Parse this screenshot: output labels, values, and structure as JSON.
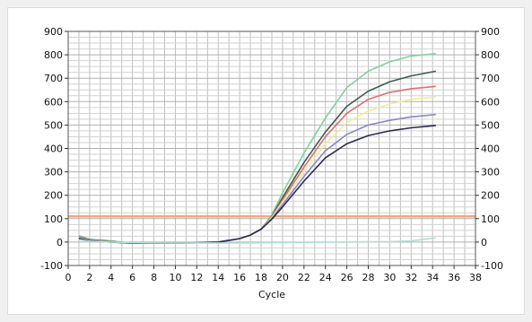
{
  "chart_data": {
    "type": "line",
    "title": "",
    "xlabel": "Cycle",
    "ylabel": "",
    "xlim": [
      0,
      38
    ],
    "ylim": [
      -100,
      900
    ],
    "xticks": [
      0,
      2,
      4,
      6,
      8,
      10,
      12,
      14,
      16,
      18,
      20,
      22,
      24,
      26,
      28,
      30,
      32,
      34,
      36,
      38
    ],
    "xtick_labels": [
      "0",
      "2",
      "4",
      "6",
      "8",
      "10",
      "12",
      "14",
      "16",
      "18",
      "20",
      "22",
      "24",
      "26",
      "28",
      "30",
      "32",
      "34",
      "36",
      "38"
    ],
    "yticks": [
      -100,
      0,
      100,
      200,
      300,
      400,
      500,
      600,
      700,
      800,
      900
    ],
    "ytick_labels": [
      "-100",
      "0",
      "100",
      "200",
      "300",
      "400",
      "500",
      "600",
      "700",
      "800",
      "900"
    ],
    "grid": true,
    "threshold": {
      "y": 110,
      "color": "#f5a57e"
    },
    "series": [
      {
        "color": "#7fd39a",
        "x": [
          1,
          2,
          4,
          6,
          8,
          10,
          12,
          14,
          16,
          17,
          18,
          19,
          20,
          22,
          24,
          26,
          28,
          30,
          32,
          34.3
        ],
        "values": [
          28,
          12,
          5,
          -5,
          -5,
          -4,
          -3,
          0,
          15,
          30,
          55,
          115,
          210,
          380,
          530,
          660,
          730,
          770,
          795,
          805
        ]
      },
      {
        "color": "#3a5d4e",
        "x": [
          1,
          2,
          4,
          6,
          8,
          10,
          12,
          14,
          16,
          17,
          18,
          19,
          20,
          22,
          24,
          26,
          28,
          30,
          32,
          34.3
        ],
        "values": [
          22,
          10,
          3,
          -5,
          -5,
          -4,
          -3,
          0,
          15,
          30,
          55,
          110,
          190,
          340,
          470,
          580,
          645,
          685,
          710,
          730
        ]
      },
      {
        "color": "#e07070",
        "x": [
          1,
          2,
          4,
          6,
          8,
          10,
          12,
          14,
          16,
          17,
          18,
          19,
          20,
          22,
          24,
          26,
          28,
          30,
          32,
          34.3
        ],
        "values": [
          20,
          8,
          2,
          -5,
          -5,
          -4,
          -3,
          0,
          15,
          30,
          55,
          108,
          180,
          320,
          450,
          550,
          610,
          640,
          655,
          665
        ]
      },
      {
        "color": "#eeee99",
        "x": [
          1,
          2,
          4,
          6,
          8,
          10,
          12,
          14,
          16,
          17,
          18,
          19,
          20,
          22,
          24,
          26,
          28,
          30,
          32,
          34.3
        ],
        "values": [
          18,
          7,
          1,
          -5,
          -5,
          -4,
          -3,
          0,
          15,
          30,
          55,
          105,
          170,
          300,
          420,
          510,
          560,
          590,
          610,
          620
        ]
      },
      {
        "color": "#8a86c8",
        "x": [
          1,
          2,
          4,
          6,
          8,
          10,
          12,
          14,
          16,
          17,
          18,
          19,
          20,
          22,
          24,
          26,
          28,
          30,
          32,
          34.3
        ],
        "values": [
          16,
          6,
          0,
          -5,
          -5,
          -4,
          -3,
          0,
          15,
          30,
          55,
          100,
          160,
          280,
          390,
          460,
          500,
          520,
          535,
          545
        ]
      },
      {
        "color": "#2b2b55",
        "x": [
          1,
          2,
          4,
          6,
          8,
          10,
          12,
          14,
          16,
          17,
          18,
          19,
          20,
          22,
          24,
          26,
          28,
          30,
          32,
          34.3
        ],
        "values": [
          15,
          5,
          0,
          -5,
          -5,
          -4,
          -3,
          0,
          15,
          30,
          55,
          98,
          150,
          260,
          360,
          420,
          455,
          475,
          488,
          498
        ]
      },
      {
        "color": "#aee0d6",
        "x": [
          1,
          2,
          4,
          6,
          8,
          10,
          12,
          14,
          16,
          18,
          20,
          22,
          24,
          26,
          28,
          30,
          32,
          34.3
        ],
        "values": [
          10,
          4,
          0,
          -3,
          -4,
          -4,
          -4,
          -4,
          -4,
          -3,
          -2,
          -1,
          0,
          0,
          1,
          2,
          5,
          18
        ]
      }
    ]
  }
}
